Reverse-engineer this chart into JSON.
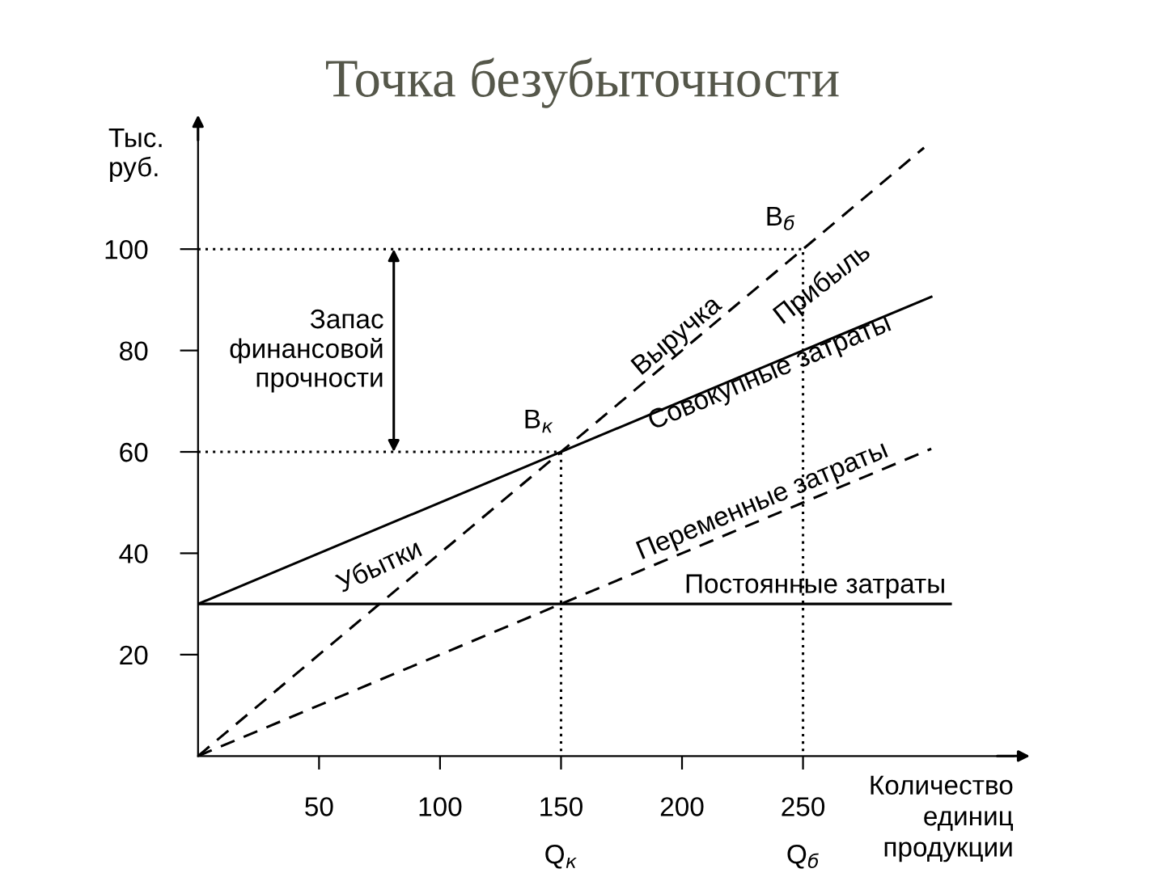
{
  "chart_data": {
    "type": "line",
    "title": "Точка безубыточности",
    "ylabel": "Тыс.\nруб.",
    "xlabel": "Количество\nединиц\nпродукции",
    "xlim": [
      0,
      337
    ],
    "ylim": [
      0,
      124
    ],
    "xticks": [
      50,
      100,
      150,
      200,
      250
    ],
    "yticks": [
      20,
      40,
      60,
      80,
      100
    ],
    "grid": false,
    "legend": false,
    "marker": "none",
    "series": [
      {
        "name": "Выручка",
        "color": "#000000",
        "line_style": "dashed",
        "x": [
          0,
          300
        ],
        "values": [
          0,
          120
        ]
      },
      {
        "name": "Совокупные затраты",
        "color": "#000000",
        "line_style": "solid",
        "x": [
          0,
          303
        ],
        "values": [
          30,
          90.6
        ]
      },
      {
        "name": "Переменные затраты",
        "color": "#000000",
        "line_style": "dashed",
        "x": [
          0,
          303
        ],
        "values": [
          0,
          60.6
        ]
      },
      {
        "name": "Постоянные затраты",
        "color": "#000000",
        "line_style": "solid",
        "x": [
          0,
          311
        ],
        "values": [
          30,
          30
        ]
      },
      {
        "color": "#000000",
        "line_style": "dotted",
        "x": [
          0,
          150,
          150
        ],
        "values": [
          60,
          60,
          0
        ]
      },
      {
        "color": "#000000",
        "line_style": "dotted",
        "x": [
          0,
          250,
          250
        ],
        "values": [
          100,
          100,
          0
        ]
      }
    ],
    "annotations": [
      "Прибыль",
      "Убытки",
      "Запас\nфинансовой\nпрочности",
      {
        "text": "В$_{к}$",
        "x": 150,
        "y": 60
      },
      {
        "text": "В$_{б}$",
        "x": 250,
        "y": 100
      },
      "Q$_{к}$",
      "Q$_{б}$"
    ]
  }
}
